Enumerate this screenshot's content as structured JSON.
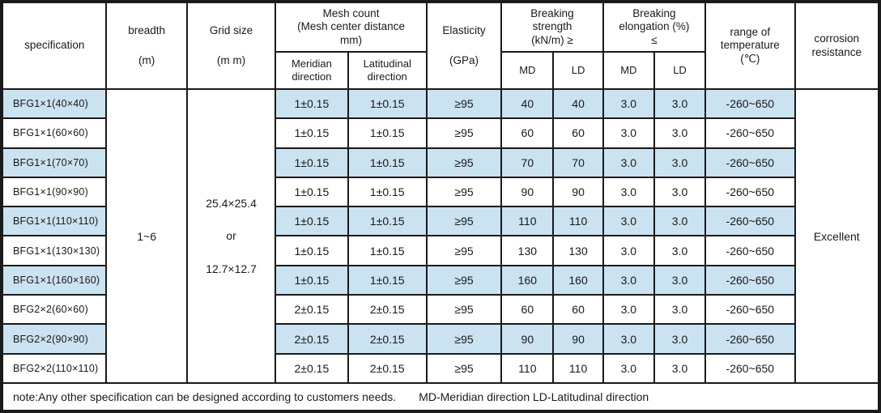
{
  "colors": {
    "stripe_blue": "#cbe2f0",
    "border_black": "#1a1a1a",
    "background": "#ffffff"
  },
  "header": {
    "specification": "specification",
    "breadth": "breadth\n(m)",
    "grid_size": "Grid size\n(m m)",
    "mesh_count_group": "Mesh count\n(Mesh center distance\nmm)",
    "meridian_direction": "Meridian\ndirection",
    "latitudinal_direction": "Latitudinal\ndirection",
    "elasticity": "Elasticity\n(GPa)",
    "breaking_strength_group": "Breaking\nstrength\n(kN/m)  ≥",
    "breaking_elongation_group": "Breaking\nelongation (%)\n≤",
    "strength_md": "MD",
    "strength_ld": "LD",
    "elongation_md": "MD",
    "elongation_ld": "LD",
    "temperature_range": "range of\ntemperature\n(℃)",
    "corrosion_resistance": "corrosion\nresistance"
  },
  "merged": {
    "breadth": "1~6",
    "grid_size_lines": [
      "25.4×25.4",
      "or",
      "12.7×12.7"
    ],
    "corrosion_resistance": "Excellent"
  },
  "rows": [
    {
      "specification": "BFG1×1(40×40)",
      "meridian": "1±0.15",
      "latitudinal": "1±0.15",
      "elasticity": "≥95",
      "strength_md": "40",
      "strength_ld": "40",
      "elongation_md": "3.0",
      "elongation_ld": "3.0",
      "temperature": "-260~650"
    },
    {
      "specification": "BFG1×1(60×60)",
      "meridian": "1±0.15",
      "latitudinal": "1±0.15",
      "elasticity": "≥95",
      "strength_md": "60",
      "strength_ld": "60",
      "elongation_md": "3.0",
      "elongation_ld": "3.0",
      "temperature": "-260~650"
    },
    {
      "specification": "BFG1×1(70×70)",
      "meridian": "1±0.15",
      "latitudinal": "1±0.15",
      "elasticity": "≥95",
      "strength_md": "70",
      "strength_ld": "70",
      "elongation_md": "3.0",
      "elongation_ld": "3.0",
      "temperature": "-260~650"
    },
    {
      "specification": "BFG1×1(90×90)",
      "meridian": "1±0.15",
      "latitudinal": "1±0.15",
      "elasticity": "≥95",
      "strength_md": "90",
      "strength_ld": "90",
      "elongation_md": "3.0",
      "elongation_ld": "3.0",
      "temperature": "-260~650"
    },
    {
      "specification": "BFG1×1(110×110)",
      "meridian": "1±0.15",
      "latitudinal": "1±0.15",
      "elasticity": "≥95",
      "strength_md": "110",
      "strength_ld": "110",
      "elongation_md": "3.0",
      "elongation_ld": "3.0",
      "temperature": "-260~650"
    },
    {
      "specification": "BFG1×1(130×130)",
      "meridian": "1±0.15",
      "latitudinal": "1±0.15",
      "elasticity": "≥95",
      "strength_md": "130",
      "strength_ld": "130",
      "elongation_md": "3.0",
      "elongation_ld": "3.0",
      "temperature": "-260~650"
    },
    {
      "specification": "BFG1×1(160×160)",
      "meridian": "1±0.15",
      "latitudinal": "1±0.15",
      "elasticity": "≥95",
      "strength_md": "160",
      "strength_ld": "160",
      "elongation_md": "3.0",
      "elongation_ld": "3.0",
      "temperature": "-260~650"
    },
    {
      "specification": "BFG2×2(60×60)",
      "meridian": "2±0.15",
      "latitudinal": "2±0.15",
      "elasticity": "≥95",
      "strength_md": "60",
      "strength_ld": "60",
      "elongation_md": "3.0",
      "elongation_ld": "3.0",
      "temperature": "-260~650"
    },
    {
      "specification": "BFG2×2(90×90)",
      "meridian": "2±0.15",
      "latitudinal": "2±0.15",
      "elasticity": "≥95",
      "strength_md": "90",
      "strength_ld": "90",
      "elongation_md": "3.0",
      "elongation_ld": "3.0",
      "temperature": "-260~650"
    },
    {
      "specification": "BFG2×2(110×110)",
      "meridian": "2±0.15",
      "latitudinal": "2±0.15",
      "elasticity": "≥95",
      "strength_md": "110",
      "strength_ld": "110",
      "elongation_md": "3.0",
      "elongation_ld": "3.0",
      "temperature": "-260~650"
    }
  ],
  "note": {
    "text": "note:Any other specification can be designed according to customers  needs.",
    "legend": "MD-Meridian direction LD-Latitudinal direction"
  }
}
